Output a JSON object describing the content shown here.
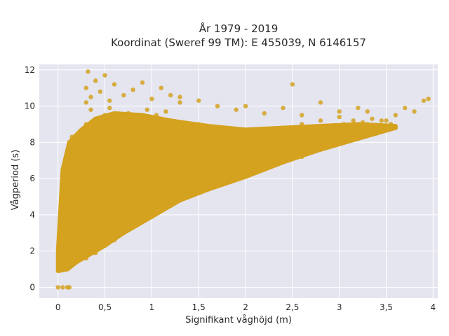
{
  "chart_data": {
    "type": "scatter",
    "title": "År 1979 - 2019",
    "subtitle": "Koordinat (Sweref 99 TM): E 455039, N 6146157",
    "xlabel": "Signifikant våghöjd (m)",
    "ylabel": "Vågperiod (s)",
    "xlim": [
      -0.2,
      4.05
    ],
    "ylim": [
      -0.6,
      12.3
    ],
    "xticks": [
      0,
      0.5,
      1,
      1.5,
      2,
      2.5,
      3,
      3.5,
      4
    ],
    "xtick_labels": [
      "0",
      "0,5",
      "1",
      "1,5",
      "2",
      "2,5",
      "3",
      "3,5",
      "4"
    ],
    "yticks": [
      0,
      2,
      4,
      6,
      8,
      10,
      12
    ],
    "ytick_labels": [
      "0",
      "2",
      "4",
      "6",
      "8",
      "10",
      "12"
    ],
    "grid": true,
    "marker_color": "#D4A21E",
    "plot_background": "#E5E5F0",
    "points": [
      [
        0.0,
        0.0
      ],
      [
        0.05,
        0.0
      ],
      [
        0.1,
        0.0
      ],
      [
        0.12,
        0.0
      ],
      [
        0.0,
        1.3
      ],
      [
        0.05,
        1.1
      ],
      [
        0.1,
        1.0
      ],
      [
        0.15,
        1.2
      ],
      [
        0.2,
        1.4
      ],
      [
        0.3,
        1.6
      ],
      [
        0.4,
        1.9
      ],
      [
        0.5,
        2.3
      ],
      [
        0.6,
        2.6
      ],
      [
        0.7,
        3.0
      ],
      [
        0.8,
        3.3
      ],
      [
        0.9,
        3.6
      ],
      [
        1.0,
        3.9
      ],
      [
        1.1,
        4.2
      ],
      [
        1.2,
        4.5
      ],
      [
        1.3,
        4.8
      ],
      [
        1.4,
        5.0
      ],
      [
        1.5,
        5.2
      ],
      [
        1.6,
        5.4
      ],
      [
        1.8,
        5.8
      ],
      [
        2.0,
        6.1
      ],
      [
        2.2,
        6.5
      ],
      [
        2.4,
        6.9
      ],
      [
        2.6,
        7.2
      ],
      [
        2.8,
        7.6
      ],
      [
        3.0,
        7.9
      ],
      [
        3.2,
        8.2
      ],
      [
        3.4,
        8.5
      ],
      [
        3.6,
        8.8
      ],
      [
        0.02,
        2.0
      ],
      [
        0.03,
        3.0
      ],
      [
        0.04,
        4.0
      ],
      [
        0.05,
        5.0
      ],
      [
        0.06,
        6.0
      ],
      [
        0.07,
        6.5
      ],
      [
        0.08,
        7.0
      ],
      [
        0.1,
        7.5
      ],
      [
        0.12,
        8.0
      ],
      [
        0.15,
        8.3
      ],
      [
        0.2,
        2.5
      ],
      [
        0.2,
        4.0
      ],
      [
        0.2,
        6.0
      ],
      [
        0.25,
        8.5
      ],
      [
        0.3,
        9.0
      ],
      [
        0.3,
        10.2
      ],
      [
        0.3,
        11.0
      ],
      [
        0.32,
        11.9
      ],
      [
        0.35,
        10.5
      ],
      [
        0.4,
        11.4
      ],
      [
        0.45,
        10.8
      ],
      [
        0.5,
        11.7
      ],
      [
        0.55,
        10.3
      ],
      [
        0.6,
        11.2
      ],
      [
        0.7,
        10.6
      ],
      [
        0.8,
        10.9
      ],
      [
        0.9,
        11.3
      ],
      [
        1.0,
        10.4
      ],
      [
        1.1,
        11.0
      ],
      [
        1.2,
        10.6
      ],
      [
        1.3,
        10.2
      ],
      [
        0.4,
        3.5
      ],
      [
        0.4,
        5.5
      ],
      [
        0.4,
        7.5
      ],
      [
        0.5,
        4.0
      ],
      [
        0.5,
        6.0
      ],
      [
        0.5,
        8.0
      ],
      [
        0.5,
        9.5
      ],
      [
        0.6,
        5.0
      ],
      [
        0.6,
        7.0
      ],
      [
        0.6,
        8.7
      ],
      [
        0.7,
        4.5
      ],
      [
        0.7,
        6.5
      ],
      [
        0.7,
        8.5
      ],
      [
        0.8,
        5.0
      ],
      [
        0.8,
        7.0
      ],
      [
        0.8,
        9.0
      ],
      [
        0.9,
        6.0
      ],
      [
        0.9,
        8.0
      ],
      [
        1.0,
        5.0
      ],
      [
        1.0,
        7.0
      ],
      [
        1.0,
        9.0
      ],
      [
        1.1,
        6.0
      ],
      [
        1.1,
        8.0
      ],
      [
        1.2,
        5.5
      ],
      [
        1.2,
        7.5
      ],
      [
        1.2,
        9.0
      ],
      [
        1.3,
        6.0
      ],
      [
        1.3,
        8.0
      ],
      [
        1.4,
        6.5
      ],
      [
        1.4,
        8.5
      ],
      [
        1.5,
        6.0
      ],
      [
        1.5,
        7.5
      ],
      [
        1.5,
        9.0
      ],
      [
        1.6,
        7.0
      ],
      [
        1.6,
        8.5
      ],
      [
        1.7,
        6.5
      ],
      [
        1.7,
        8.0
      ],
      [
        1.8,
        7.0
      ],
      [
        1.8,
        8.7
      ],
      [
        1.9,
        7.5
      ],
      [
        2.0,
        7.0
      ],
      [
        2.0,
        8.5
      ],
      [
        2.1,
        7.8
      ],
      [
        2.2,
        7.2
      ],
      [
        2.2,
        8.6
      ],
      [
        2.3,
        8.0
      ],
      [
        2.4,
        7.5
      ],
      [
        2.4,
        8.8
      ],
      [
        2.5,
        8.2
      ],
      [
        2.6,
        7.8
      ],
      [
        2.6,
        9.0
      ],
      [
        2.7,
        8.4
      ],
      [
        2.8,
        8.1
      ],
      [
        2.8,
        9.2
      ],
      [
        2.9,
        8.6
      ],
      [
        3.0,
        8.3
      ],
      [
        3.0,
        9.4
      ],
      [
        3.1,
        8.8
      ],
      [
        3.2,
        8.5
      ],
      [
        3.3,
        9.0
      ],
      [
        3.4,
        8.8
      ],
      [
        3.5,
        9.2
      ],
      [
        3.6,
        9.5
      ],
      [
        3.7,
        9.9
      ],
      [
        3.8,
        9.7
      ],
      [
        3.9,
        10.3
      ],
      [
        3.95,
        10.4
      ],
      [
        1.3,
        10.5
      ],
      [
        1.5,
        10.3
      ],
      [
        1.7,
        10.0
      ],
      [
        1.9,
        9.8
      ],
      [
        2.0,
        10.0
      ],
      [
        2.2,
        9.6
      ],
      [
        2.4,
        9.9
      ],
      [
        2.5,
        11.2
      ],
      [
        2.6,
        9.5
      ],
      [
        2.8,
        10.2
      ],
      [
        3.0,
        9.7
      ],
      [
        3.2,
        9.9
      ],
      [
        3.3,
        9.7
      ],
      [
        0.15,
        2.8
      ],
      [
        0.25,
        3.5
      ],
      [
        0.3,
        5.0
      ],
      [
        0.35,
        7.0
      ],
      [
        0.45,
        9.0
      ],
      [
        0.35,
        9.8
      ],
      [
        0.55,
        9.9
      ],
      [
        0.65,
        9.3
      ],
      [
        0.75,
        9.6
      ],
      [
        0.85,
        9.4
      ],
      [
        0.95,
        9.8
      ],
      [
        1.05,
        9.5
      ],
      [
        1.15,
        9.7
      ],
      [
        0.1,
        2.5
      ],
      [
        0.1,
        4.5
      ],
      [
        0.1,
        6.5
      ],
      [
        0.15,
        5.5
      ],
      [
        0.15,
        7.5
      ],
      [
        0.25,
        5.0
      ],
      [
        0.25,
        7.0
      ],
      [
        0.3,
        3.0
      ],
      [
        0.35,
        4.0
      ],
      [
        0.35,
        6.0
      ],
      [
        0.45,
        5.0
      ],
      [
        0.45,
        7.0
      ],
      [
        0.55,
        6.0
      ],
      [
        0.65,
        7.5
      ],
      [
        0.75,
        6.0
      ],
      [
        0.85,
        7.5
      ],
      [
        0.95,
        6.5
      ],
      [
        1.05,
        7.5
      ],
      [
        1.15,
        7.0
      ],
      [
        1.25,
        6.5
      ],
      [
        1.35,
        7.0
      ],
      [
        1.45,
        7.5
      ],
      [
        1.55,
        7.8
      ],
      [
        1.65,
        7.3
      ],
      [
        1.75,
        7.6
      ],
      [
        1.85,
        7.9
      ],
      [
        1.95,
        8.1
      ],
      [
        2.05,
        8.2
      ],
      [
        2.15,
        8.4
      ],
      [
        2.25,
        8.1
      ],
      [
        2.35,
        8.5
      ],
      [
        2.45,
        8.3
      ],
      [
        2.55,
        8.6
      ],
      [
        2.65,
        8.5
      ],
      [
        2.75,
        8.7
      ],
      [
        2.85,
        8.8
      ],
      [
        2.95,
        8.9
      ],
      [
        3.05,
        9.0
      ],
      [
        3.15,
        9.2
      ],
      [
        3.25,
        9.1
      ],
      [
        3.35,
        9.3
      ],
      [
        3.45,
        9.2
      ],
      [
        3.55,
        9.0
      ]
    ]
  }
}
